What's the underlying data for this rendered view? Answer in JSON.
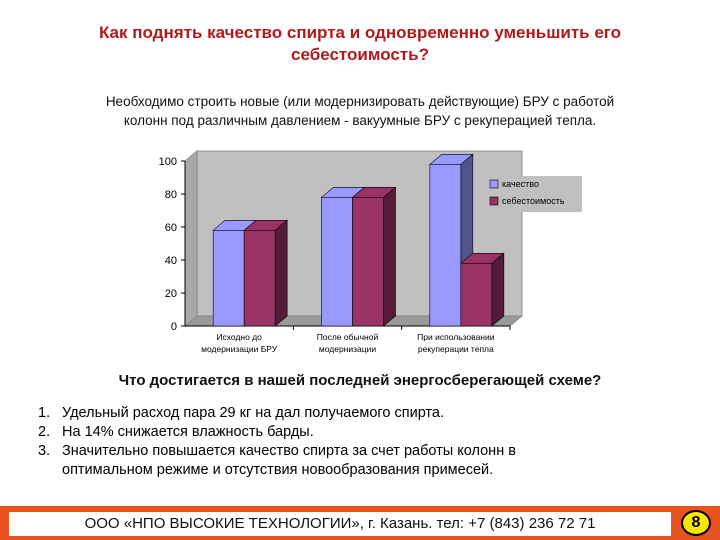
{
  "slide": {
    "title_lines": [
      "Как поднять качество спирта и одновременно уменьшить его",
      "себестоимость?"
    ],
    "subtitle_lines": [
      "Необходимо строить новые (или модернизировать действующие) БРУ с работой",
      "колонн под различным давлением - вакуумные БРУ с рекуперацией тепла."
    ],
    "question": "Что достигается в нашей последней энергосберегающей схеме?",
    "points": [
      {
        "num": "1.",
        "lines": [
          "Удельный расход пара  29 кг на дал получаемого спирта."
        ]
      },
      {
        "num": "2.",
        "lines": [
          "На 14% снижается влажность барды."
        ]
      },
      {
        "num": "3.",
        "lines": [
          "Значительно повышается качество спирта за счет работы колонн в",
          "оптимальном режиме и отсутствия новообразования примесей."
        ]
      }
    ],
    "footer": "ООО «НПО ВЫСОКИЕ ТЕХНОЛОГИИ», г. Казань. тел: +7 (843) 236 72 71",
    "page_number": "8"
  },
  "chart_data": {
    "type": "bar",
    "categories": [
      [
        "Исходно до",
        "модернизации БРУ"
      ],
      [
        "После обычной",
        "модернизации"
      ],
      [
        "При использовании",
        "рекуперации тепла"
      ]
    ],
    "series": [
      {
        "name": "качество",
        "values": [
          58,
          78,
          98
        ],
        "color": "#9999ff"
      },
      {
        "name": "себестоимость",
        "values": [
          58,
          78,
          38
        ],
        "color": "#993366"
      }
    ],
    "ylim": [
      0,
      100
    ],
    "yticks": [
      "0",
      "20",
      "40",
      "60",
      "80",
      "100"
    ],
    "grid": false,
    "legend": "right",
    "style": "3d",
    "plot_color": "#c0c0c0"
  }
}
